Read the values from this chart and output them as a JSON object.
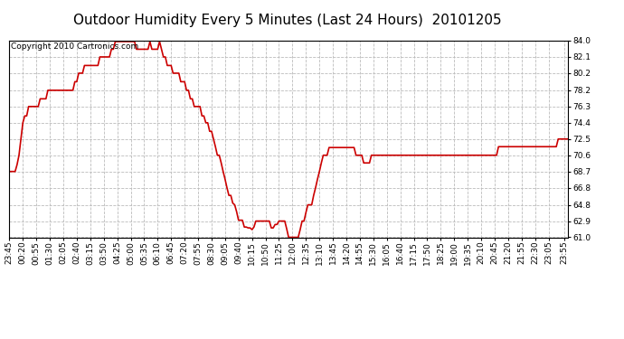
{
  "title": "Outdoor Humidity Every 5 Minutes (Last 24 Hours)  20101205",
  "copyright_text": "Copyright 2010 Cartronics.com",
  "background_color": "#ffffff",
  "plot_bg_color": "#ffffff",
  "line_color": "#cc0000",
  "grid_color": "#bbbbbb",
  "ylim": [
    61.0,
    84.0
  ],
  "yticks": [
    61.0,
    62.9,
    64.8,
    66.8,
    68.7,
    70.6,
    72.5,
    74.4,
    76.3,
    78.2,
    80.2,
    82.1,
    84.0
  ],
  "humidity_values": [
    68.7,
    68.7,
    68.7,
    68.7,
    69.5,
    70.6,
    72.5,
    74.4,
    75.2,
    75.2,
    76.3,
    76.3,
    76.3,
    76.3,
    76.3,
    76.3,
    77.2,
    77.2,
    77.2,
    77.2,
    78.2,
    78.2,
    78.2,
    78.2,
    78.2,
    78.2,
    78.2,
    78.2,
    78.2,
    78.2,
    78.2,
    78.2,
    78.2,
    78.2,
    79.2,
    79.2,
    80.2,
    80.2,
    80.2,
    81.1,
    81.1,
    81.1,
    81.1,
    81.1,
    81.1,
    81.1,
    81.1,
    82.1,
    82.1,
    82.1,
    82.1,
    82.1,
    82.1,
    83.0,
    83.0,
    83.9,
    83.9,
    83.9,
    83.9,
    83.9,
    83.9,
    83.9,
    83.9,
    83.9,
    83.9,
    83.9,
    83.0,
    83.0,
    83.0,
    83.0,
    83.0,
    83.0,
    83.0,
    83.9,
    83.0,
    83.0,
    83.0,
    83.0,
    83.9,
    83.0,
    82.1,
    82.1,
    81.1,
    81.1,
    81.1,
    80.2,
    80.2,
    80.2,
    80.2,
    79.2,
    79.2,
    79.2,
    78.2,
    78.2,
    77.2,
    77.2,
    76.3,
    76.3,
    76.3,
    76.3,
    75.2,
    75.2,
    74.4,
    74.4,
    73.4,
    73.4,
    72.5,
    71.6,
    70.6,
    70.6,
    69.7,
    68.7,
    67.8,
    66.8,
    65.9,
    65.9,
    65.0,
    64.8,
    64.0,
    63.0,
    63.0,
    63.0,
    62.2,
    62.2,
    62.1,
    62.1,
    61.9,
    62.2,
    62.9,
    62.9,
    62.9,
    62.9,
    62.9,
    62.9,
    62.9,
    62.9,
    62.1,
    62.1,
    62.5,
    62.5,
    62.9,
    62.9,
    62.9,
    62.9,
    62.0,
    61.0,
    61.0,
    61.0,
    61.0,
    61.0,
    61.0,
    61.9,
    62.9,
    62.9,
    63.9,
    64.8,
    64.8,
    64.8,
    65.9,
    66.8,
    67.8,
    68.7,
    69.7,
    70.6,
    70.6,
    70.6,
    71.5,
    71.5,
    71.5,
    71.5,
    71.5,
    71.5,
    71.5,
    71.5,
    71.5,
    71.5,
    71.5,
    71.5,
    71.5,
    71.5,
    70.6,
    70.6,
    70.6,
    70.6,
    69.7,
    69.7,
    69.7,
    69.7,
    70.6,
    70.6,
    70.6,
    70.6,
    70.6,
    70.6,
    70.6,
    70.6,
    70.6,
    70.6,
    70.6,
    70.6,
    70.6,
    70.6,
    70.6,
    70.6,
    70.6,
    70.6,
    70.6,
    70.6,
    70.6,
    70.6,
    70.6,
    70.6,
    70.6,
    70.6,
    70.6,
    70.6,
    70.6,
    70.6,
    70.6,
    70.6,
    70.6,
    70.6,
    70.6,
    70.6,
    70.6,
    70.6,
    70.6,
    70.6,
    70.6,
    70.6,
    70.6,
    70.6,
    70.6,
    70.6,
    70.6,
    70.6,
    70.6,
    70.6,
    70.6,
    70.6,
    70.6,
    70.6,
    70.6,
    70.6,
    70.6,
    70.6,
    70.6,
    70.6,
    70.6,
    70.6,
    70.6,
    70.6,
    70.6,
    70.6,
    71.6,
    71.6,
    71.6,
    71.6,
    71.6,
    71.6,
    71.6,
    71.6,
    71.6,
    71.6,
    71.6,
    71.6,
    71.6,
    71.6,
    71.6,
    71.6,
    71.6,
    71.6,
    71.6,
    71.6,
    71.6,
    71.6,
    71.6,
    71.6,
    71.6,
    71.6,
    71.6,
    71.6,
    71.6,
    71.6,
    71.6,
    72.5,
    72.5,
    72.5,
    72.5,
    72.5,
    72.5
  ],
  "x_tick_positions": [
    0,
    7,
    14,
    21,
    28,
    35,
    42,
    49,
    56,
    63,
    70,
    77,
    84,
    91,
    98,
    105,
    112,
    119,
    126,
    133,
    140,
    147,
    154,
    161,
    168,
    175,
    182,
    189,
    196,
    203,
    210,
    217,
    224,
    231,
    238,
    245,
    252,
    259,
    266,
    273,
    280,
    288
  ],
  "x_tick_labels": [
    "23:45",
    "00:20",
    "00:55",
    "01:30",
    "02:05",
    "02:40",
    "03:15",
    "03:50",
    "04:25",
    "05:00",
    "05:35",
    "06:10",
    "06:45",
    "07:20",
    "07:55",
    "08:30",
    "09:05",
    "09:40",
    "10:15",
    "10:50",
    "11:25",
    "12:00",
    "12:35",
    "13:10",
    "13:45",
    "14:20",
    "14:55",
    "15:30",
    "16:05",
    "16:40",
    "17:15",
    "17:50",
    "18:25",
    "19:00",
    "19:35",
    "20:10",
    "20:45",
    "21:20",
    "21:55",
    "22:30",
    "23:05",
    "23:55"
  ],
  "title_fontsize": 11,
  "tick_fontsize": 6.5,
  "copyright_fontsize": 6.5
}
